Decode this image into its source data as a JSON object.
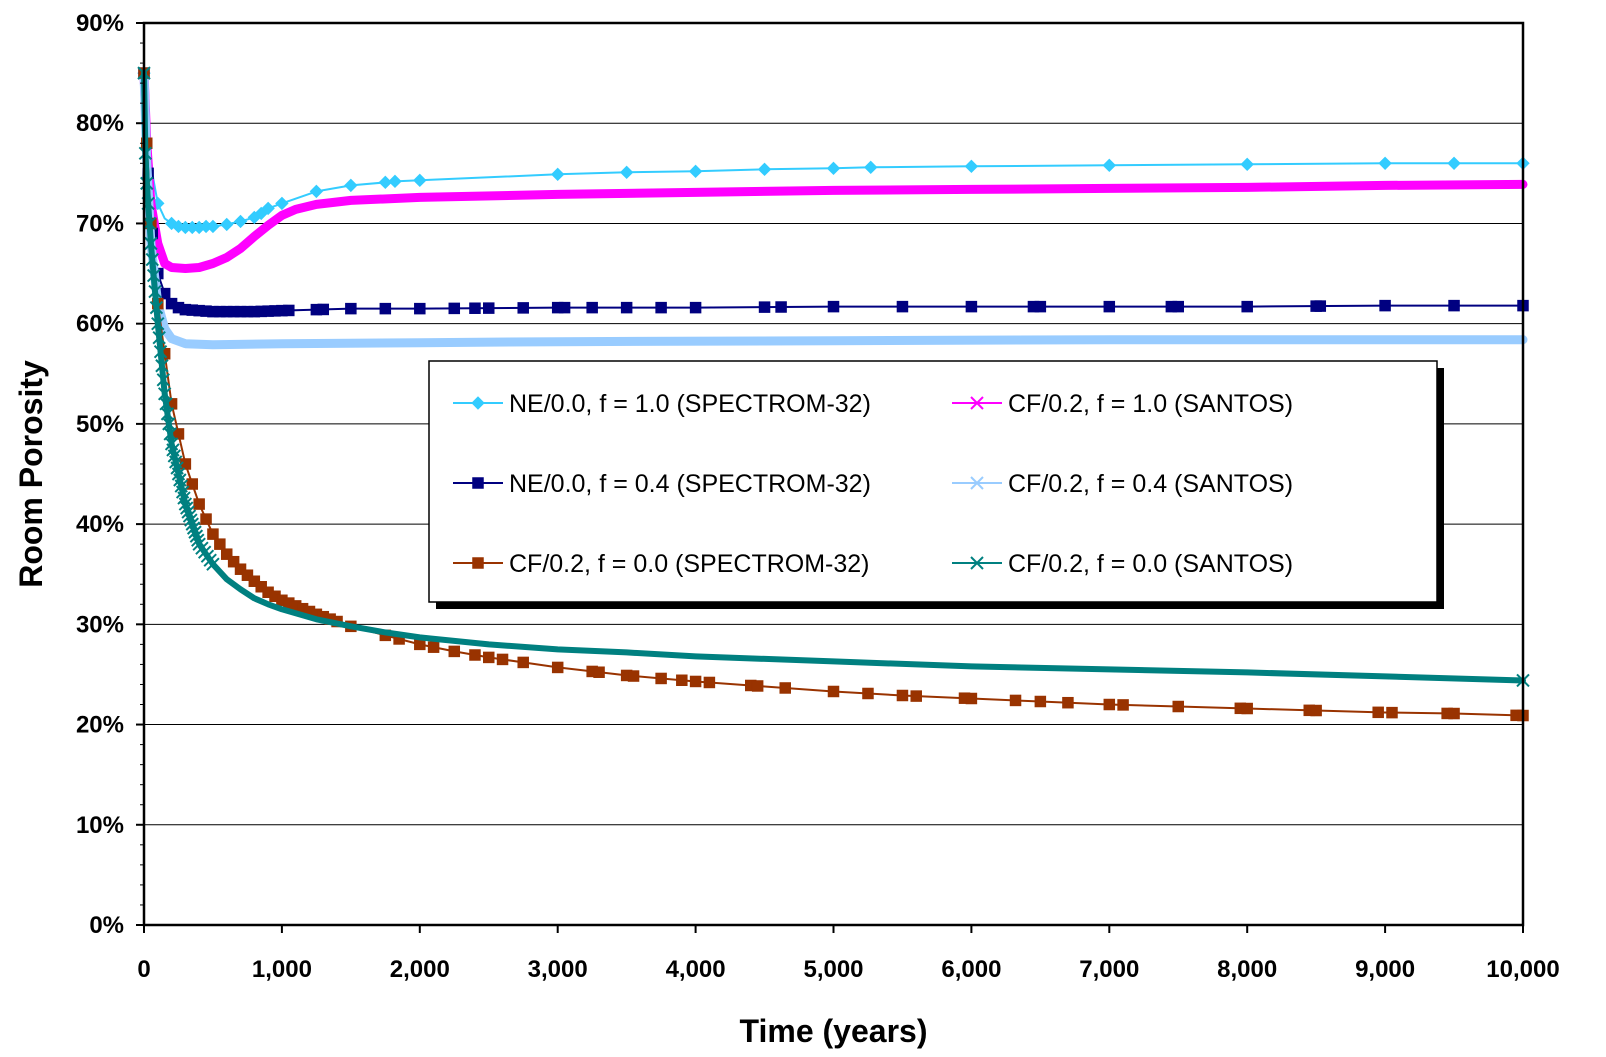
{
  "chart_data": {
    "type": "line",
    "xlabel": "Time (years)",
    "ylabel": "Room Porosity",
    "xlim": [
      0,
      10000
    ],
    "ylim": [
      0,
      90
    ],
    "x_ticks": [
      0,
      1000,
      2000,
      3000,
      4000,
      5000,
      6000,
      7000,
      8000,
      9000,
      10000
    ],
    "x_tick_labels": [
      "0",
      "1,000",
      "2,000",
      "3,000",
      "4,000",
      "5,000",
      "6,000",
      "7,000",
      "8,000",
      "9,000",
      "10,000"
    ],
    "y_ticks": [
      0,
      10,
      20,
      30,
      40,
      50,
      60,
      70,
      80,
      90
    ],
    "y_tick_labels": [
      "0%",
      "10%",
      "20%",
      "30%",
      "40%",
      "50%",
      "60%",
      "70%",
      "80%",
      "90%"
    ],
    "grid": "horizontal",
    "legend_placement": "center",
    "series": [
      {
        "name": "NE/0.0, f = 1.0 (SPECTROM-32)",
        "color": "#33ccff",
        "marker": "diamond",
        "points": [
          [
            0,
            85
          ],
          [
            30,
            80
          ],
          [
            60,
            75
          ],
          [
            100,
            72
          ],
          [
            150,
            70.5
          ],
          [
            200,
            70
          ],
          [
            250,
            69.7
          ],
          [
            300,
            69.6
          ],
          [
            350,
            69.6
          ],
          [
            400,
            69.6
          ],
          [
            450,
            69.7
          ],
          [
            500,
            69.7
          ],
          [
            600,
            69.9
          ],
          [
            700,
            70.2
          ],
          [
            800,
            70.6
          ],
          [
            850,
            71
          ],
          [
            900,
            71.5
          ],
          [
            1000,
            72
          ],
          [
            1250,
            73.2
          ],
          [
            1500,
            73.8
          ],
          [
            1750,
            74.1
          ],
          [
            1820,
            74.2
          ],
          [
            2000,
            74.3
          ],
          [
            3000,
            74.9
          ],
          [
            3500,
            75.1
          ],
          [
            4000,
            75.2
          ],
          [
            4500,
            75.4
          ],
          [
            5000,
            75.5
          ],
          [
            5270,
            75.6
          ],
          [
            6000,
            75.7
          ],
          [
            7000,
            75.8
          ],
          [
            8000,
            75.9
          ],
          [
            9000,
            76
          ],
          [
            9500,
            76
          ],
          [
            10000,
            76
          ]
        ],
        "marker_x": [
          0,
          100,
          200,
          250,
          300,
          350,
          400,
          450,
          500,
          600,
          700,
          800,
          850,
          900,
          1000,
          1250,
          1500,
          1750,
          1820,
          2000,
          3000,
          3500,
          4000,
          4500,
          5000,
          5270,
          6000,
          7000,
          8000,
          9000,
          9500,
          10000
        ]
      },
      {
        "name": "CF/0.2, f = 1.0 (SANTOS)",
        "color": "#ff00ff",
        "marker": "x",
        "points": [
          [
            0,
            85
          ],
          [
            20,
            78
          ],
          [
            50,
            72
          ],
          [
            100,
            68
          ],
          [
            150,
            66
          ],
          [
            200,
            65.6
          ],
          [
            300,
            65.5
          ],
          [
            400,
            65.6
          ],
          [
            500,
            66
          ],
          [
            600,
            66.6
          ],
          [
            700,
            67.5
          ],
          [
            800,
            68.7
          ],
          [
            900,
            69.8
          ],
          [
            1000,
            70.8
          ],
          [
            1100,
            71.4
          ],
          [
            1250,
            71.9
          ],
          [
            1500,
            72.3
          ],
          [
            2000,
            72.6
          ],
          [
            3000,
            72.9
          ],
          [
            4000,
            73.1
          ],
          [
            5000,
            73.3
          ],
          [
            6000,
            73.4
          ],
          [
            7000,
            73.5
          ],
          [
            8000,
            73.6
          ],
          [
            9000,
            73.8
          ],
          [
            10000,
            73.9
          ]
        ],
        "marker_x": []
      },
      {
        "name": "NE/0.0, f = 0.4 (SPECTROM-32)",
        "color": "#000080",
        "marker": "square",
        "points": [
          [
            0,
            85
          ],
          [
            30,
            75
          ],
          [
            60,
            69
          ],
          [
            100,
            65
          ],
          [
            150,
            63
          ],
          [
            200,
            62
          ],
          [
            250,
            61.6
          ],
          [
            300,
            61.4
          ],
          [
            400,
            61.3
          ],
          [
            500,
            61.2
          ],
          [
            600,
            61.2
          ],
          [
            700,
            61.2
          ],
          [
            800,
            61.2
          ],
          [
            1000,
            61.3
          ],
          [
            1250,
            61.4
          ],
          [
            1500,
            61.5
          ],
          [
            1750,
            61.5
          ],
          [
            2000,
            61.5
          ],
          [
            3000,
            61.6
          ],
          [
            4000,
            61.6
          ],
          [
            5000,
            61.7
          ],
          [
            6000,
            61.7
          ],
          [
            7000,
            61.7
          ],
          [
            8000,
            61.7
          ],
          [
            9000,
            61.8
          ],
          [
            10000,
            61.8
          ]
        ],
        "marker_x": [
          0,
          30,
          60,
          100,
          150,
          200,
          250,
          300,
          350,
          400,
          450,
          500,
          550,
          600,
          650,
          700,
          750,
          800,
          850,
          900,
          950,
          1000,
          1050,
          1250,
          1300,
          1500,
          1750,
          2000,
          2250,
          2400,
          2500,
          2750,
          3000,
          3050,
          3250,
          3500,
          3750,
          4000,
          4500,
          4620,
          5000,
          5500,
          6000,
          6450,
          6500,
          7000,
          7450,
          7500,
          8000,
          8500,
          8530,
          9000,
          9500,
          10000
        ]
      },
      {
        "name": "CF/0.2, f = 0.4 (SANTOS)",
        "color": "#99ccff",
        "marker": "x",
        "points": [
          [
            0,
            85
          ],
          [
            20,
            76
          ],
          [
            50,
            68
          ],
          [
            100,
            62
          ],
          [
            150,
            59.5
          ],
          [
            200,
            58.5
          ],
          [
            300,
            58
          ],
          [
            500,
            57.9
          ],
          [
            1000,
            58
          ],
          [
            2000,
            58.1
          ],
          [
            3000,
            58.2
          ],
          [
            5000,
            58.3
          ],
          [
            7000,
            58.4
          ],
          [
            10000,
            58.4
          ]
        ],
        "marker_x": []
      },
      {
        "name": "CF/0.2, f = 0.0 (SPECTROM-32)",
        "color": "#993300",
        "marker": "square",
        "points": [
          [
            0,
            85
          ],
          [
            20,
            78
          ],
          [
            50,
            70
          ],
          [
            100,
            62
          ],
          [
            150,
            57
          ],
          [
            200,
            52
          ],
          [
            300,
            46
          ],
          [
            400,
            42
          ],
          [
            500,
            39
          ],
          [
            600,
            37
          ],
          [
            700,
            35.5
          ],
          [
            800,
            34.3
          ],
          [
            900,
            33.2
          ],
          [
            1000,
            32.4
          ],
          [
            1250,
            31
          ],
          [
            1500,
            29.8
          ],
          [
            1750,
            28.9
          ],
          [
            2000,
            28
          ],
          [
            2250,
            27.3
          ],
          [
            2500,
            26.7
          ],
          [
            2750,
            26.2
          ],
          [
            3000,
            25.7
          ],
          [
            3500,
            24.9
          ],
          [
            4000,
            24.3
          ],
          [
            4500,
            23.8
          ],
          [
            5000,
            23.3
          ],
          [
            5500,
            22.9
          ],
          [
            6000,
            22.6
          ],
          [
            6500,
            22.3
          ],
          [
            7000,
            22
          ],
          [
            7500,
            21.8
          ],
          [
            8000,
            21.6
          ],
          [
            8500,
            21.4
          ],
          [
            9000,
            21.2
          ],
          [
            9500,
            21.1
          ],
          [
            10000,
            20.9
          ]
        ],
        "marker_x": [
          0,
          20,
          50,
          100,
          150,
          200,
          250,
          300,
          350,
          400,
          450,
          500,
          550,
          600,
          650,
          700,
          750,
          800,
          850,
          900,
          950,
          1000,
          1050,
          1100,
          1150,
          1200,
          1250,
          1300,
          1350,
          1400,
          1500,
          1750,
          1850,
          2000,
          2100,
          2250,
          2400,
          2500,
          2600,
          2750,
          3000,
          3250,
          3300,
          3500,
          3550,
          3750,
          3900,
          4000,
          4100,
          4400,
          4450,
          4650,
          5000,
          5250,
          5500,
          5600,
          5950,
          6000,
          6320,
          6500,
          6700,
          7000,
          7100,
          7500,
          7950,
          8000,
          8450,
          8500,
          8950,
          9050,
          9450,
          9500,
          9950,
          10000
        ]
      },
      {
        "name": "CF/0.2, f = 0.0 (SANTOS)",
        "color": "#008080",
        "marker": "x",
        "points": [
          [
            0,
            85
          ],
          [
            10,
            77
          ],
          [
            20,
            74
          ],
          [
            50,
            68
          ],
          [
            100,
            60
          ],
          [
            150,
            53
          ],
          [
            200,
            48
          ],
          [
            300,
            42
          ],
          [
            400,
            38
          ],
          [
            500,
            36
          ],
          [
            600,
            34.5
          ],
          [
            700,
            33.5
          ],
          [
            800,
            32.6
          ],
          [
            900,
            32
          ],
          [
            1000,
            31.5
          ],
          [
            1250,
            30.5
          ],
          [
            1500,
            29.8
          ],
          [
            1750,
            29.2
          ],
          [
            2000,
            28.7
          ],
          [
            2500,
            28
          ],
          [
            3000,
            27.5
          ],
          [
            3500,
            27.2
          ],
          [
            4000,
            26.8
          ],
          [
            5000,
            26.3
          ],
          [
            6000,
            25.8
          ],
          [
            7000,
            25.5
          ],
          [
            8000,
            25.2
          ],
          [
            9000,
            24.8
          ],
          [
            10000,
            24.4
          ]
        ],
        "marker_x": [
          0,
          10,
          20,
          30,
          40,
          50,
          60,
          70,
          80,
          90,
          100,
          110,
          120,
          130,
          140,
          150,
          160,
          170,
          180,
          190,
          200,
          210,
          220,
          230,
          240,
          250,
          260,
          270,
          280,
          290,
          300,
          310,
          320,
          330,
          340,
          350,
          360,
          370,
          380,
          390,
          400,
          420,
          440,
          460,
          480,
          500,
          10000
        ]
      }
    ]
  }
}
